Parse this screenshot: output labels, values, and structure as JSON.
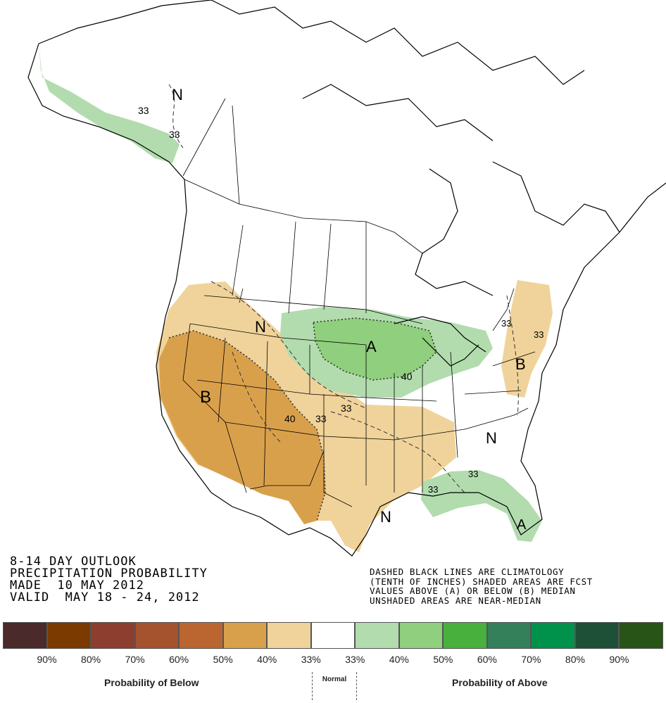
{
  "title": {
    "line1": "8-14 DAY OUTLOOK",
    "line2": "PRECIPITATION PROBABILITY",
    "line3": "MADE  10 MAY 2012",
    "line4": "VALID  MAY 18 - 24, 2012"
  },
  "note": {
    "line1": "DASHED BLACK LINES ARE CLIMATOLOGY",
    "line2": "(TENTH OF INCHES) SHADED AREAS ARE FCST",
    "line3": "VALUES ABOVE (A) OR BELOW (B) MEDIAN",
    "line4": "UNSHADED AREAS ARE NEAR-MEDIAN"
  },
  "map_labels": {
    "alaska_n": "N",
    "alaska_33a": "33",
    "alaska_33b": "33",
    "northplains_n": "N",
    "west_b": "B",
    "midwest_a": "A",
    "midwest_40": "40",
    "plains_33": "33",
    "sw_40": "40",
    "sw_33": "33",
    "east_b": "B",
    "east_33a": "33",
    "east_33b": "33",
    "se_n": "N",
    "gulf_n": "N",
    "fl_a": "A",
    "fl_33a": "33",
    "fl_33b": "33"
  },
  "legend": {
    "colors": [
      "#4a2a2a",
      "#7b3a00",
      "#8e3e2e",
      "#a5522e",
      "#bb6630",
      "#d9a04c",
      "#f0d39a",
      "#ffffff",
      "#b2dcae",
      "#8fcf7d",
      "#48b03c",
      "#33805a",
      "#00914a",
      "#1e5037",
      "#295417"
    ],
    "below_pcts": [
      "90%",
      "80%",
      "70%",
      "60%",
      "50%",
      "40%",
      "33%"
    ],
    "above_pcts": [
      "33%",
      "40%",
      "50%",
      "60%",
      "70%",
      "80%",
      "90%"
    ],
    "below_label": "Probability of Below",
    "normal_label": "Normal",
    "above_label": "Probability of Above"
  }
}
